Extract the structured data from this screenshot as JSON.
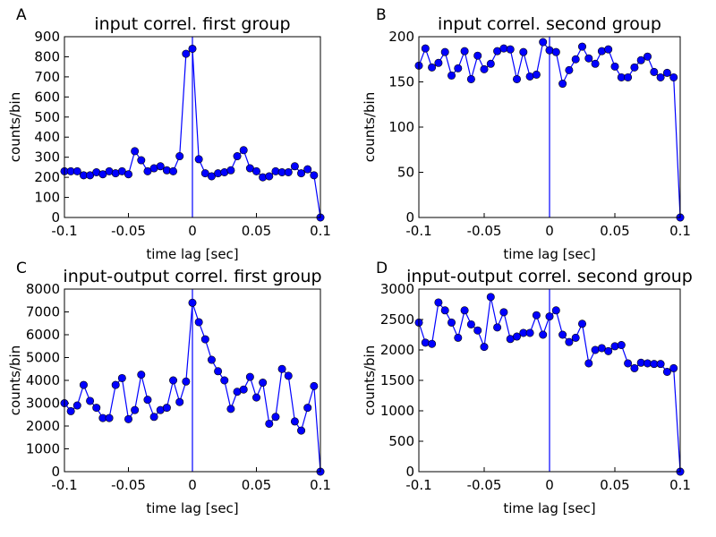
{
  "chart_data": [
    {
      "type": "line",
      "panel_label": "A",
      "title": "input correl. first group",
      "xlabel": "time lag [sec]",
      "ylabel": "counts/bin",
      "x": [
        -0.1,
        -0.095,
        -0.09,
        -0.085,
        -0.08,
        -0.075,
        -0.07,
        -0.065,
        -0.06,
        -0.055,
        -0.05,
        -0.045,
        -0.04,
        -0.035,
        -0.03,
        -0.025,
        -0.02,
        -0.015,
        -0.01,
        -0.005,
        0,
        0.005,
        0.01,
        0.015,
        0.02,
        0.025,
        0.03,
        0.035,
        0.04,
        0.045,
        0.05,
        0.055,
        0.06,
        0.065,
        0.07,
        0.075,
        0.08,
        0.085,
        0.09,
        0.095,
        0.1
      ],
      "values": [
        230,
        230,
        230,
        210,
        210,
        225,
        215,
        230,
        220,
        230,
        215,
        330,
        285,
        230,
        245,
        255,
        235,
        230,
        305,
        815,
        840,
        290,
        220,
        205,
        220,
        225,
        235,
        305,
        335,
        245,
        230,
        200,
        205,
        230,
        225,
        225,
        255,
        220,
        240,
        210,
        0
      ],
      "color": "#0000ff",
      "vline": 0,
      "xlim": [
        -0.1,
        0.1
      ],
      "xticks": [
        -0.1,
        -0.05,
        0,
        0.05,
        0.1
      ],
      "ylim": [
        0,
        900
      ],
      "yticks": [
        0,
        100,
        200,
        300,
        400,
        500,
        600,
        700,
        800,
        900
      ]
    },
    {
      "type": "line",
      "panel_label": "B",
      "title": "input correl. second group",
      "xlabel": "time lag [sec]",
      "ylabel": "counts/bin",
      "x": [
        -0.1,
        -0.095,
        -0.09,
        -0.085,
        -0.08,
        -0.075,
        -0.07,
        -0.065,
        -0.06,
        -0.055,
        -0.05,
        -0.045,
        -0.04,
        -0.035,
        -0.03,
        -0.025,
        -0.02,
        -0.015,
        -0.01,
        -0.005,
        0,
        0.005,
        0.01,
        0.015,
        0.02,
        0.025,
        0.03,
        0.035,
        0.04,
        0.045,
        0.05,
        0.055,
        0.06,
        0.065,
        0.07,
        0.075,
        0.08,
        0.085,
        0.09,
        0.095,
        0.1
      ],
      "values": [
        168,
        187,
        166,
        171,
        183,
        157,
        165,
        184,
        153,
        179,
        164,
        170,
        184,
        187,
        186,
        153,
        183,
        156,
        158,
        194,
        185,
        183,
        148,
        163,
        175,
        189,
        176,
        170,
        184,
        186,
        167,
        155,
        155,
        166,
        174,
        178,
        161,
        155,
        160,
        155,
        0
      ],
      "color": "#0000ff",
      "vline": 0,
      "xlim": [
        -0.1,
        0.1
      ],
      "xticks": [
        -0.1,
        -0.05,
        0,
        0.05,
        0.1
      ],
      "ylim": [
        0,
        200
      ],
      "yticks": [
        0,
        50,
        100,
        150,
        200
      ]
    },
    {
      "type": "line",
      "panel_label": "C",
      "title": "input-output correl. first group",
      "xlabel": "time lag [sec]",
      "ylabel": "counts/bin",
      "x": [
        -0.1,
        -0.095,
        -0.09,
        -0.085,
        -0.08,
        -0.075,
        -0.07,
        -0.065,
        -0.06,
        -0.055,
        -0.05,
        -0.045,
        -0.04,
        -0.035,
        -0.03,
        -0.025,
        -0.02,
        -0.015,
        -0.01,
        -0.005,
        0,
        0.005,
        0.01,
        0.015,
        0.02,
        0.025,
        0.03,
        0.035,
        0.04,
        0.045,
        0.05,
        0.055,
        0.06,
        0.065,
        0.07,
        0.075,
        0.08,
        0.085,
        0.09,
        0.095,
        0.1
      ],
      "values": [
        3000,
        2650,
        2900,
        3800,
        3100,
        2800,
        2350,
        2350,
        3800,
        4100,
        2300,
        2700,
        4250,
        3150,
        2400,
        2700,
        2800,
        4000,
        3050,
        3950,
        7400,
        6550,
        5800,
        4900,
        4400,
        4000,
        2750,
        3500,
        3600,
        4150,
        3250,
        3900,
        2100,
        2400,
        4500,
        4200,
        2200,
        1800,
        2800,
        3750,
        0
      ],
      "color": "#0000ff",
      "vline": 0,
      "xlim": [
        -0.1,
        0.1
      ],
      "xticks": [
        -0.1,
        -0.05,
        0,
        0.05,
        0.1
      ],
      "ylim": [
        0,
        8000
      ],
      "yticks": [
        0,
        1000,
        2000,
        3000,
        4000,
        5000,
        6000,
        7000,
        8000
      ]
    },
    {
      "type": "line",
      "panel_label": "D",
      "title": "input-output correl. second group",
      "xlabel": "time lag [sec]",
      "ylabel": "counts/bin",
      "x": [
        -0.1,
        -0.095,
        -0.09,
        -0.085,
        -0.08,
        -0.075,
        -0.07,
        -0.065,
        -0.06,
        -0.055,
        -0.05,
        -0.045,
        -0.04,
        -0.035,
        -0.03,
        -0.025,
        -0.02,
        -0.015,
        -0.01,
        -0.005,
        0,
        0.005,
        0.01,
        0.015,
        0.02,
        0.025,
        0.03,
        0.035,
        0.04,
        0.045,
        0.05,
        0.055,
        0.06,
        0.065,
        0.07,
        0.075,
        0.08,
        0.085,
        0.09,
        0.095,
        0.1
      ],
      "values": [
        2450,
        2120,
        2100,
        2780,
        2650,
        2450,
        2200,
        2650,
        2420,
        2320,
        2050,
        2870,
        2370,
        2620,
        2180,
        2220,
        2280,
        2280,
        2570,
        2250,
        2550,
        2650,
        2250,
        2130,
        2200,
        2430,
        1780,
        2000,
        2030,
        1980,
        2060,
        2080,
        1780,
        1700,
        1790,
        1780,
        1770,
        1770,
        1640,
        1700,
        0
      ],
      "color": "#0000ff",
      "vline": 0,
      "xlim": [
        -0.1,
        0.1
      ],
      "xticks": [
        -0.1,
        -0.05,
        0,
        0.05,
        0.1
      ],
      "ylim": [
        0,
        3000
      ],
      "yticks": [
        0,
        500,
        1000,
        1500,
        2000,
        2500,
        3000
      ]
    }
  ]
}
